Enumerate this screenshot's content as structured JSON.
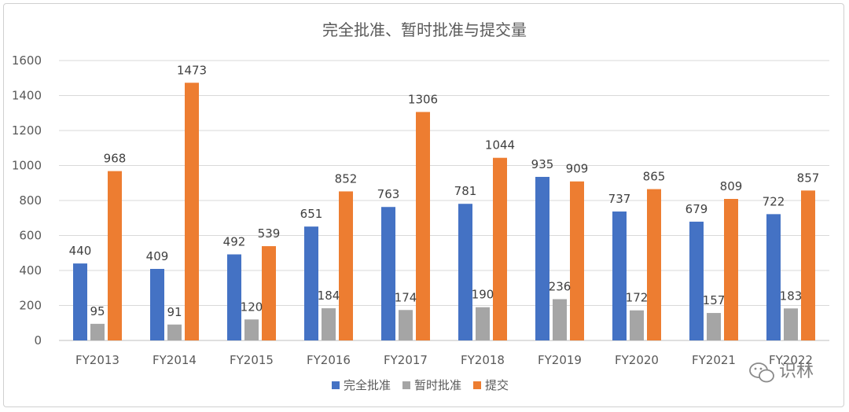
{
  "chart_data": {
    "type": "bar",
    "title": "完全批准、暂时批准与提交量",
    "xlabel": "",
    "ylabel": "",
    "categories": [
      "FY2013",
      "FY2014",
      "FY2015",
      "FY2016",
      "FY2017",
      "FY2018",
      "FY2019",
      "FY2020",
      "FY2021",
      "FY2022"
    ],
    "series": [
      {
        "name": "完全批准",
        "color": "#4472C4",
        "values": [
          440,
          409,
          492,
          651,
          763,
          781,
          935,
          737,
          679,
          722
        ]
      },
      {
        "name": "暂时批准",
        "color": "#A5A5A5",
        "values": [
          95,
          91,
          120,
          184,
          174,
          190,
          236,
          172,
          157,
          183
        ]
      },
      {
        "name": "提交",
        "color": "#ED7D31",
        "values": [
          968,
          1473,
          539,
          852,
          1306,
          1044,
          909,
          865,
          809,
          857
        ]
      }
    ],
    "ylim": [
      0,
      1600
    ],
    "yticks": [
      0,
      200,
      400,
      600,
      800,
      1000,
      1200,
      1400,
      1600
    ],
    "grid": true,
    "legend": "bottom",
    "data_labels": true
  },
  "watermark": {
    "text": "识林",
    "icon": "wechat-icon"
  }
}
